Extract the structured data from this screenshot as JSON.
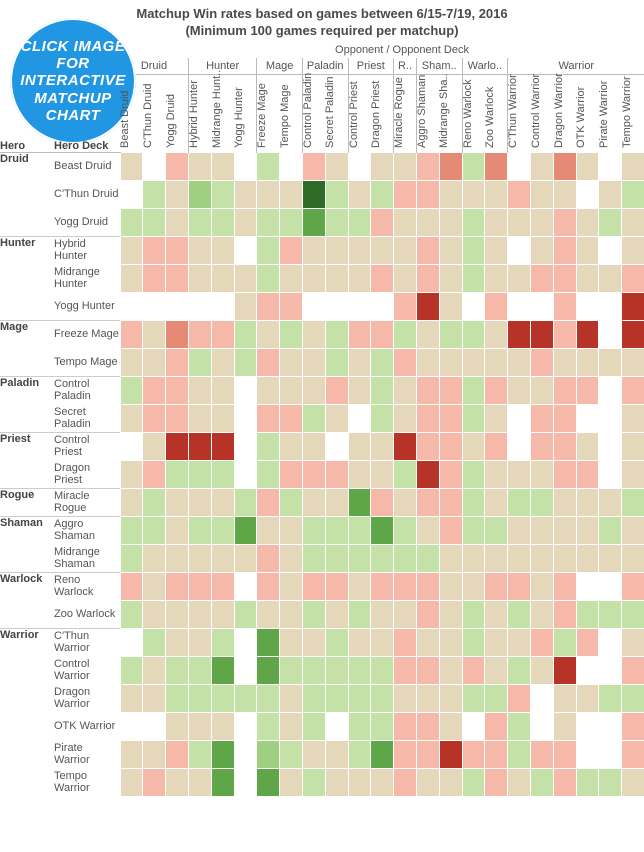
{
  "title1": "Matchup Win rates based on games between 6/15-7/19, 2016",
  "title2": "(Minimum 100 games required per matchup)",
  "sup_title": "Opponent  /  Opponent Deck",
  "axis_hero": "Hero",
  "axis_deck": "Hero Deck",
  "badge_text": "CLICK IMAGE FOR INTERACTIVE MATCHUP CHART",
  "chart": {
    "type": "heatmap",
    "cell_border": "#ffffff",
    "background": "#ffffff",
    "group_border": "#bbbbbb",
    "font": {
      "family": "Arial",
      "size_title": 13,
      "size_label": 11,
      "size_body": 11
    },
    "palette_note": "diverging red (low) – tan (null/near-50) – green (high); #ffffff = no data",
    "colors": {
      "nodata": "#ffffff",
      "tan": "#e5d7b9",
      "lt_red": "#f6b8a8",
      "med_red": "#e58a75",
      "dark_red": "#b73328",
      "vdark_red": "#8d1f16",
      "lt_green": "#c4e2a8",
      "med_green": "#9fcf80",
      "dark_green": "#5ea648",
      "vdark_green": "#2e6b26"
    },
    "opponent_groups": [
      {
        "label": "Druid",
        "decks": [
          "Beast Druid",
          "C'Thun Druid",
          "Yogg Druid"
        ]
      },
      {
        "label": "Hunter",
        "decks": [
          "Hybrid Hunter",
          "Midrange Hunt..",
          "Yogg Hunter"
        ]
      },
      {
        "label": "Mage",
        "decks": [
          "Freeze Mage",
          "Tempo Mage"
        ]
      },
      {
        "label": "Paladin",
        "decks": [
          "Control Paladin",
          "Secret Paladin"
        ]
      },
      {
        "label": "Priest",
        "decks": [
          "Control Priest",
          "Dragon Priest"
        ]
      },
      {
        "label": "R..",
        "decks": [
          "Miracle Rogue"
        ]
      },
      {
        "label": "Sham..",
        "decks": [
          "Aggro Shaman",
          "Midrange Sha.."
        ]
      },
      {
        "label": "Warlo..",
        "decks": [
          "Reno Warlock",
          "Zoo Warlock"
        ]
      },
      {
        "label": "Warrior",
        "decks": [
          "C'Thun Warrior",
          "Control Warrior",
          "Dragon Warrior",
          "OTK Warrior",
          "Pirate Warrior",
          "Tempo Warrior"
        ]
      }
    ],
    "rows": [
      {
        "hero": "Druid",
        "deck": "Beast Druid",
        "cells": [
          "tan",
          "nodata",
          "lt_red",
          "tan",
          "tan",
          "nodata",
          "lt_green",
          "nodata",
          "lt_red",
          "tan",
          "nodata",
          "tan",
          "tan",
          "lt_red",
          "med_red",
          "lt_green",
          "med_red",
          "nodata",
          "tan",
          "med_red",
          "tan",
          "nodata",
          "tan"
        ]
      },
      {
        "hero": "Druid",
        "deck": "C'Thun Druid",
        "cells": [
          "nodata",
          "lt_green",
          "tan",
          "med_green",
          "lt_green",
          "tan",
          "tan",
          "tan",
          "vdark_green",
          "lt_green",
          "tan",
          "lt_green",
          "lt_red",
          "lt_red",
          "tan",
          "tan",
          "tan",
          "lt_red",
          "tan",
          "tan",
          "nodata",
          "tan",
          "lt_green"
        ]
      },
      {
        "hero": "Druid",
        "deck": "Yogg Druid",
        "cells": [
          "lt_green",
          "lt_green",
          "tan",
          "lt_green",
          "lt_green",
          "tan",
          "lt_green",
          "lt_green",
          "dark_green",
          "lt_green",
          "lt_green",
          "lt_red",
          "tan",
          "tan",
          "tan",
          "lt_green",
          "tan",
          "tan",
          "tan",
          "lt_red",
          "tan",
          "lt_green",
          "tan"
        ]
      },
      {
        "hero": "Hunter",
        "deck": "Hybrid Hunter",
        "cells": [
          "tan",
          "lt_red",
          "lt_red",
          "tan",
          "tan",
          "nodata",
          "lt_green",
          "lt_red",
          "tan",
          "tan",
          "tan",
          "tan",
          "tan",
          "lt_red",
          "tan",
          "lt_green",
          "tan",
          "nodata",
          "tan",
          "lt_red",
          "tan",
          "nodata",
          "tan"
        ]
      },
      {
        "hero": "Hunter",
        "deck": "Midrange Hunter",
        "cells": [
          "tan",
          "lt_red",
          "lt_red",
          "tan",
          "tan",
          "tan",
          "lt_green",
          "tan",
          "tan",
          "tan",
          "tan",
          "lt_red",
          "tan",
          "lt_red",
          "tan",
          "lt_green",
          "tan",
          "tan",
          "lt_red",
          "lt_red",
          "tan",
          "tan",
          "lt_red"
        ]
      },
      {
        "hero": "Hunter",
        "deck": "Yogg Hunter",
        "cells": [
          "nodata",
          "nodata",
          "nodata",
          "nodata",
          "nodata",
          "tan",
          "lt_red",
          "lt_red",
          "nodata",
          "nodata",
          "nodata",
          "nodata",
          "lt_red",
          "dark_red",
          "tan",
          "nodata",
          "lt_red",
          "nodata",
          "nodata",
          "lt_red",
          "nodata",
          "nodata",
          "dark_red"
        ]
      },
      {
        "hero": "Mage",
        "deck": "Freeze Mage",
        "cells": [
          "lt_red",
          "tan",
          "med_red",
          "lt_red",
          "lt_red",
          "lt_green",
          "tan",
          "lt_green",
          "tan",
          "lt_green",
          "lt_red",
          "lt_red",
          "lt_green",
          "tan",
          "lt_green",
          "lt_green",
          "tan",
          "dark_red",
          "dark_red",
          "lt_red",
          "dark_red",
          "nodata",
          "dark_red"
        ]
      },
      {
        "hero": "Mage",
        "deck": "Tempo Mage",
        "cells": [
          "tan",
          "tan",
          "lt_red",
          "lt_green",
          "tan",
          "lt_green",
          "lt_red",
          "tan",
          "tan",
          "lt_green",
          "tan",
          "lt_green",
          "lt_red",
          "tan",
          "tan",
          "tan",
          "tan",
          "tan",
          "lt_red",
          "tan",
          "tan",
          "tan",
          "tan"
        ]
      },
      {
        "hero": "Paladin",
        "deck": "Control Paladin",
        "cells": [
          "lt_green",
          "lt_red",
          "lt_red",
          "tan",
          "tan",
          "nodata",
          "tan",
          "tan",
          "tan",
          "lt_red",
          "tan",
          "lt_green",
          "tan",
          "lt_red",
          "lt_red",
          "lt_green",
          "lt_red",
          "tan",
          "tan",
          "lt_red",
          "lt_red",
          "nodata",
          "lt_red"
        ]
      },
      {
        "hero": "Paladin",
        "deck": "Secret Paladin",
        "cells": [
          "tan",
          "lt_red",
          "lt_red",
          "tan",
          "tan",
          "nodata",
          "lt_red",
          "lt_red",
          "lt_green",
          "tan",
          "nodata",
          "lt_green",
          "tan",
          "lt_red",
          "lt_red",
          "lt_green",
          "tan",
          "nodata",
          "lt_red",
          "lt_red",
          "nodata",
          "nodata",
          "tan"
        ]
      },
      {
        "hero": "Priest",
        "deck": "Control Priest",
        "cells": [
          "nodata",
          "tan",
          "dark_red",
          "dark_red",
          "dark_red",
          "nodata",
          "lt_green",
          "tan",
          "tan",
          "nodata",
          "tan",
          "tan",
          "dark_red",
          "lt_red",
          "lt_red",
          "tan",
          "lt_red",
          "nodata",
          "lt_red",
          "lt_red",
          "tan",
          "nodata",
          "tan"
        ]
      },
      {
        "hero": "Priest",
        "deck": "Dragon Priest",
        "cells": [
          "tan",
          "lt_red",
          "lt_green",
          "lt_green",
          "lt_green",
          "nodata",
          "lt_green",
          "lt_red",
          "lt_red",
          "lt_red",
          "tan",
          "tan",
          "lt_green",
          "dark_red",
          "lt_red",
          "lt_green",
          "tan",
          "tan",
          "tan",
          "lt_red",
          "lt_red",
          "nodata",
          "tan"
        ]
      },
      {
        "hero": "Rogue",
        "deck": "Miracle Rogue",
        "cells": [
          "tan",
          "lt_green",
          "tan",
          "tan",
          "tan",
          "lt_green",
          "lt_red",
          "lt_green",
          "tan",
          "tan",
          "dark_green",
          "lt_red",
          "tan",
          "lt_red",
          "lt_red",
          "lt_green",
          "tan",
          "lt_green",
          "lt_green",
          "tan",
          "tan",
          "tan",
          "lt_green"
        ]
      },
      {
        "hero": "Shaman",
        "deck": "Aggro Shaman",
        "cells": [
          "lt_green",
          "lt_green",
          "tan",
          "lt_green",
          "lt_green",
          "dark_green",
          "tan",
          "tan",
          "lt_green",
          "lt_green",
          "lt_green",
          "dark_green",
          "lt_green",
          "tan",
          "lt_red",
          "lt_green",
          "lt_green",
          "tan",
          "tan",
          "tan",
          "tan",
          "lt_green",
          "tan"
        ]
      },
      {
        "hero": "Shaman",
        "deck": "Midrange Shaman",
        "cells": [
          "lt_green",
          "tan",
          "tan",
          "tan",
          "tan",
          "tan",
          "lt_red",
          "tan",
          "lt_green",
          "lt_green",
          "lt_green",
          "lt_green",
          "lt_green",
          "lt_green",
          "tan",
          "tan",
          "tan",
          "tan",
          "tan",
          "tan",
          "tan",
          "tan",
          "tan"
        ]
      },
      {
        "hero": "Warlock",
        "deck": "Reno Warlock",
        "cells": [
          "lt_red",
          "tan",
          "lt_red",
          "lt_red",
          "lt_red",
          "nodata",
          "lt_red",
          "tan",
          "lt_red",
          "lt_red",
          "tan",
          "lt_red",
          "lt_red",
          "lt_red",
          "tan",
          "tan",
          "lt_red",
          "lt_red",
          "tan",
          "lt_red",
          "nodata",
          "nodata",
          "lt_red"
        ]
      },
      {
        "hero": "Warlock",
        "deck": "Zoo Warlock",
        "cells": [
          "lt_green",
          "tan",
          "tan",
          "tan",
          "tan",
          "lt_green",
          "tan",
          "tan",
          "lt_green",
          "tan",
          "lt_green",
          "tan",
          "tan",
          "lt_red",
          "tan",
          "lt_green",
          "tan",
          "lt_green",
          "tan",
          "lt_red",
          "lt_green",
          "lt_green",
          "lt_green"
        ]
      },
      {
        "hero": "Warrior",
        "deck": "C'Thun Warrior",
        "cells": [
          "nodata",
          "lt_green",
          "tan",
          "tan",
          "lt_green",
          "nodata",
          "dark_green",
          "tan",
          "tan",
          "lt_green",
          "tan",
          "tan",
          "lt_red",
          "tan",
          "tan",
          "lt_green",
          "tan",
          "tan",
          "lt_red",
          "lt_green",
          "lt_red",
          "nodata",
          "tan"
        ]
      },
      {
        "hero": "Warrior",
        "deck": "Control Warrior",
        "cells": [
          "lt_green",
          "tan",
          "lt_green",
          "lt_green",
          "dark_green",
          "nodata",
          "dark_green",
          "lt_green",
          "lt_green",
          "lt_green",
          "lt_green",
          "lt_green",
          "lt_red",
          "lt_red",
          "tan",
          "lt_red",
          "tan",
          "lt_green",
          "tan",
          "dark_red",
          "nodata",
          "nodata",
          "lt_red"
        ]
      },
      {
        "hero": "Warrior",
        "deck": "Dragon Warrior",
        "cells": [
          "tan",
          "tan",
          "lt_green",
          "lt_green",
          "lt_green",
          "lt_green",
          "lt_green",
          "tan",
          "lt_green",
          "lt_green",
          "lt_green",
          "lt_green",
          "tan",
          "tan",
          "tan",
          "lt_green",
          "lt_green",
          "lt_red",
          "nodata",
          "tan",
          "tan",
          "lt_green",
          "lt_green"
        ]
      },
      {
        "hero": "Warrior",
        "deck": "OTK Warrior",
        "cells": [
          "nodata",
          "nodata",
          "tan",
          "tan",
          "tan",
          "nodata",
          "lt_green",
          "tan",
          "lt_green",
          "nodata",
          "lt_green",
          "lt_green",
          "lt_red",
          "lt_red",
          "tan",
          "nodata",
          "lt_red",
          "lt_green",
          "nodata",
          "tan",
          "nodata",
          "nodata",
          "lt_red"
        ]
      },
      {
        "hero": "Warrior",
        "deck": "Pirate Warrior",
        "cells": [
          "tan",
          "tan",
          "lt_red",
          "lt_green",
          "dark_green",
          "nodata",
          "med_green",
          "lt_green",
          "tan",
          "tan",
          "lt_green",
          "dark_green",
          "lt_red",
          "lt_red",
          "dark_red",
          "lt_red",
          "lt_red",
          "lt_green",
          "lt_red",
          "lt_red",
          "nodata",
          "nodata",
          "lt_red"
        ]
      },
      {
        "hero": "Warrior",
        "deck": "Tempo Warrior",
        "cells": [
          "tan",
          "lt_red",
          "tan",
          "tan",
          "dark_green",
          "nodata",
          "dark_green",
          "tan",
          "lt_green",
          "tan",
          "tan",
          "tan",
          "lt_red",
          "tan",
          "tan",
          "lt_green",
          "lt_red",
          "tan",
          "lt_green",
          "lt_red",
          "lt_green",
          "lt_green",
          "tan"
        ]
      }
    ]
  }
}
